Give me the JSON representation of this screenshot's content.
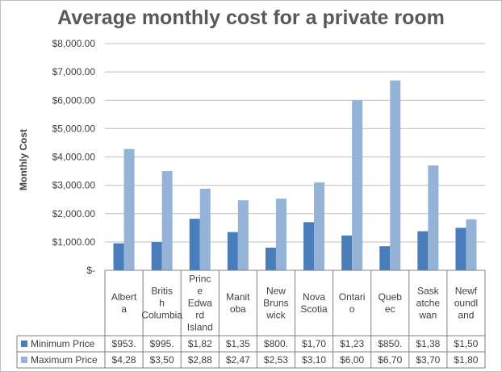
{
  "chart_data": {
    "type": "bar",
    "title": "Average monthly cost for a private room",
    "ylabel": "Monthly Cost",
    "xlabel": "",
    "ylim": [
      0,
      8000
    ],
    "grid": true,
    "legend": "data table below chart",
    "yticks": [
      "$-",
      "$1,000.00",
      "$2,000.00",
      "$3,000.00",
      "$4,000.00",
      "$5,000.00",
      "$6,000.00",
      "$7,000.00",
      "$8,000.00"
    ],
    "categories": [
      "Albert a",
      "Britis h Columbia",
      "Princ e Edwa rd Island",
      "Manit oba",
      "New Bruns wick",
      "Nova Scotia",
      "Ontari o",
      "Queb ec",
      "Sask atche wan",
      "Newf oundl and"
    ],
    "series": [
      {
        "name": "Minimum Price",
        "color": "#4a7ebb",
        "values": [
          953,
          995,
          1820,
          1350,
          800,
          1700,
          1230,
          850,
          1380,
          1500
        ],
        "table_text": [
          "$953.",
          "$995.",
          "$1,82",
          "$1,35",
          "$800.",
          "$1,70",
          "$1,23",
          "$850.",
          "$1,38",
          "$1,50"
        ]
      },
      {
        "name": "Maximum Price",
        "color": "#95b3d7",
        "values": [
          4280,
          3500,
          2880,
          2470,
          2530,
          3100,
          6000,
          6700,
          3700,
          1800
        ],
        "table_text": [
          "$4,28",
          "$3,50",
          "$2,88",
          "$2,47",
          "$2,53",
          "$3,10",
          "$6,00",
          "$6,70",
          "$3,70",
          "$1,80"
        ]
      }
    ]
  }
}
